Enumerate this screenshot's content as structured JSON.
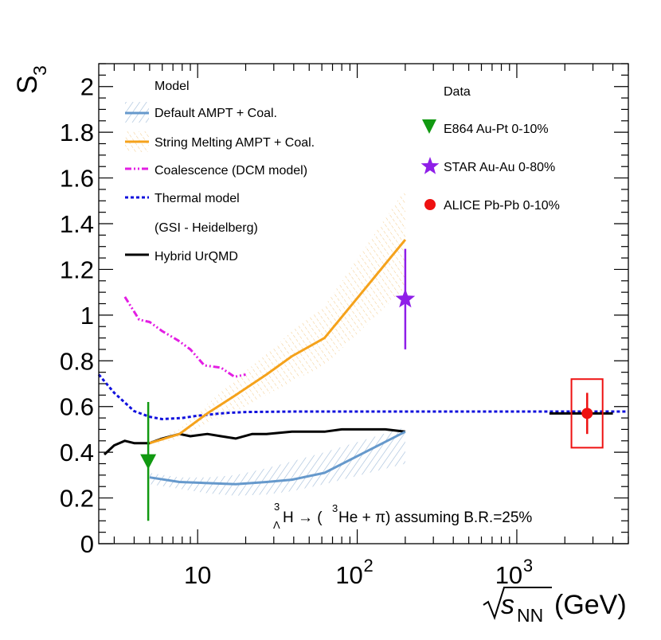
{
  "chart_data": {
    "type": "line",
    "ylabel": "S",
    "ylabel_sub": "3",
    "xlabel": "(GeV)",
    "xlabel_sqrt": "s",
    "xlabel_sub": "NN",
    "xscale": "log",
    "xlim": [
      2.4,
      5000
    ],
    "ylim": [
      0,
      2.1
    ],
    "y_ticks": [
      {
        "value": 0,
        "label": "0"
      },
      {
        "value": 0.2,
        "label": "0.2"
      },
      {
        "value": 0.4,
        "label": "0.4"
      },
      {
        "value": 0.6,
        "label": "0.6"
      },
      {
        "value": 0.8,
        "label": "0.8"
      },
      {
        "value": 1.0,
        "label": "1"
      },
      {
        "value": 1.2,
        "label": "1.2"
      },
      {
        "value": 1.4,
        "label": "1.4"
      },
      {
        "value": 1.6,
        "label": "1.6"
      },
      {
        "value": 1.8,
        "label": "1.8"
      },
      {
        "value": 2.0,
        "label": "2"
      }
    ],
    "x_ticks": [
      {
        "value": 10,
        "label": "10",
        "exp": ""
      },
      {
        "value": 100,
        "label": "10",
        "exp": "2"
      },
      {
        "value": 1000,
        "label": "10",
        "exp": "3"
      }
    ],
    "annotation": {
      "parts": [
        "H → (",
        "He + π) assuming B.R.=25%"
      ],
      "sup_hyper": "3",
      "sub_hyper": "Λ",
      "sup_he": "3"
    },
    "legend_models_title": "Model",
    "legend_data_title": "Data",
    "series": [
      {
        "name": "Default AMPT + Coal.",
        "color": "#6699cc",
        "style": "solid",
        "x": [
          5,
          7.7,
          11.5,
          17.3,
          27,
          39,
          62.4,
          200
        ],
        "y": [
          0.29,
          0.27,
          0.265,
          0.26,
          0.27,
          0.28,
          0.31,
          0.49
        ],
        "band_lower": [
          0.26,
          0.24,
          0.22,
          0.21,
          0.215,
          0.23,
          0.26,
          0.35
        ],
        "band_upper": [
          0.31,
          0.29,
          0.29,
          0.3,
          0.33,
          0.36,
          0.4,
          0.51
        ]
      },
      {
        "name": "String Melting AMPT + Coal.",
        "color": "#f5a21b",
        "style": "solid",
        "x": [
          5,
          7.7,
          11.5,
          17.3,
          27,
          39,
          62.4,
          200
        ],
        "y": [
          0.44,
          0.48,
          0.57,
          0.65,
          0.74,
          0.82,
          0.9,
          1.33
        ],
        "band_lower": [
          0.43,
          0.46,
          0.53,
          0.58,
          0.65,
          0.71,
          0.78,
          1.12
        ],
        "band_upper": [
          0.45,
          0.5,
          0.61,
          0.72,
          0.83,
          0.93,
          1.04,
          1.55
        ]
      },
      {
        "name": "Coalescence (DCM model)",
        "color": "#e31ee3",
        "style": "dashdotdot",
        "x": [
          3.5,
          4.3,
          5,
          6,
          7.5,
          9,
          11,
          14,
          17,
          20
        ],
        "y": [
          1.08,
          0.98,
          0.97,
          0.93,
          0.89,
          0.85,
          0.78,
          0.77,
          0.73,
          0.74
        ]
      },
      {
        "name": "Thermal model",
        "name2": "(GSI - Heidelberg)",
        "color": "#1010dd",
        "style": "dotted",
        "x": [
          2.4,
          3,
          4,
          5,
          6,
          8,
          10,
          15,
          20,
          40,
          100,
          1000,
          5000
        ],
        "y": [
          0.74,
          0.66,
          0.58,
          0.555,
          0.545,
          0.55,
          0.56,
          0.572,
          0.576,
          0.578,
          0.578,
          0.578,
          0.578
        ]
      },
      {
        "name": "Hybrid UrQMD",
        "color": "#000000",
        "style": "solid",
        "x": [
          2.6,
          3,
          3.5,
          4,
          5,
          6,
          7.7,
          9,
          11.5,
          14,
          17.3,
          22,
          27,
          39,
          62.4,
          80,
          100,
          150,
          200
        ],
        "y": [
          0.39,
          0.43,
          0.45,
          0.44,
          0.44,
          0.46,
          0.48,
          0.47,
          0.48,
          0.47,
          0.46,
          0.48,
          0.48,
          0.49,
          0.49,
          0.5,
          0.5,
          0.5,
          0.49
        ]
      }
    ],
    "data_points": [
      {
        "name": "E864 Au-Pt 0-10%",
        "marker": "triangle-down",
        "color": "#119911",
        "x": 4.9,
        "y": 0.36,
        "err_low": 0.26,
        "err_high": 0.26
      },
      {
        "name": "STAR Au-Au 0-80%",
        "marker": "star",
        "color": "#8f1fe8",
        "x": 200,
        "y": 1.07,
        "err_low": 0.22,
        "err_high": 0.22
      },
      {
        "name": "ALICE Pb-Pb 0-10%",
        "marker": "circle",
        "color": "#ee1111",
        "x": 2760,
        "y": 0.57,
        "err_low": 0.09,
        "err_high": 0.09,
        "sys_box": {
          "x_low": 2200,
          "x_high": 3450,
          "y_low": 0.42,
          "y_high": 0.72
        },
        "h_line": {
          "x_low": 1600,
          "x_high": 4000,
          "color": "#000000"
        }
      }
    ]
  }
}
